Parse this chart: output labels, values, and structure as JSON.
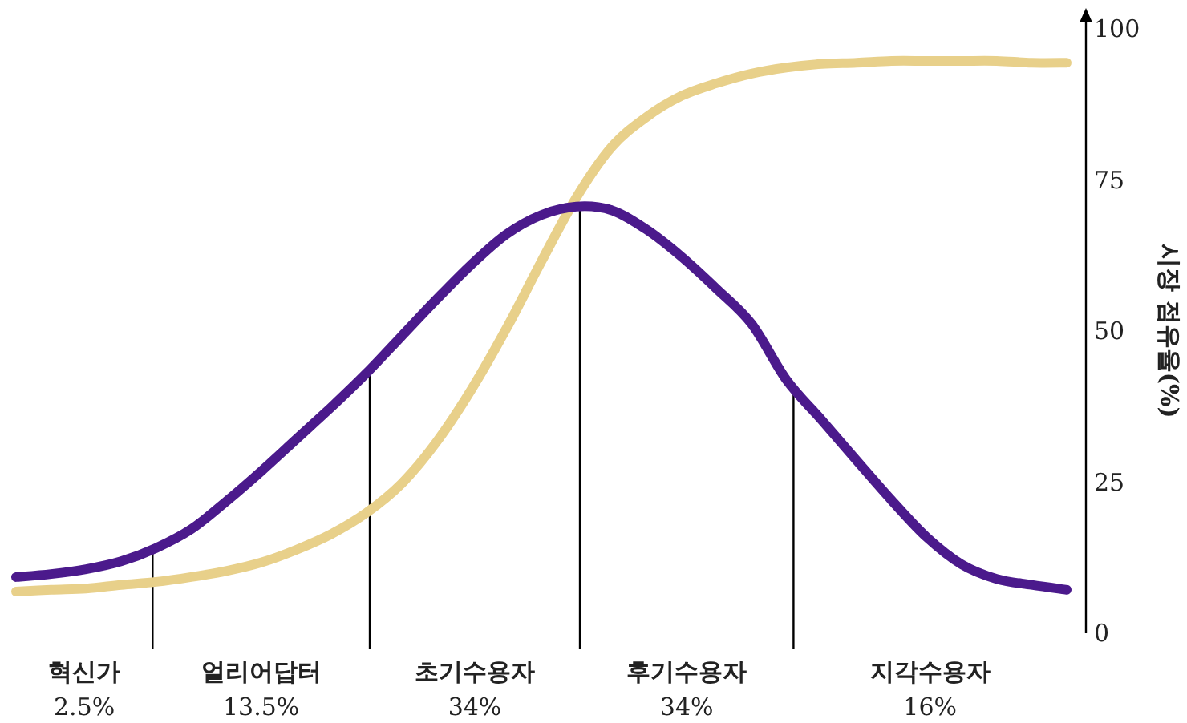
{
  "chart_data": {
    "type": "line",
    "ylabel": "시장 점유율(%)",
    "ylim": [
      0,
      100
    ],
    "yticks": [
      0,
      25,
      50,
      75,
      100
    ],
    "tick_labels": "y",
    "marker": "none",
    "line_style": "solid",
    "categories": [
      null,
      null,
      null,
      null,
      null,
      null,
      null,
      null,
      null,
      null,
      null,
      null,
      null,
      null,
      null,
      null,
      null,
      null,
      null,
      null,
      null,
      null,
      null,
      null,
      null,
      null,
      null,
      null,
      null,
      null,
      null
    ],
    "series": [
      {
        "color": "#e8d08a",
        "values": [
          6.9,
          7.2,
          7.4,
          8.0,
          8.5,
          9.3,
          10.3,
          11.7,
          13.8,
          16.4,
          19.9,
          24.7,
          31.6,
          40.3,
          50.4,
          61.5,
          72.1,
          80.4,
          85.4,
          88.9,
          91.0,
          92.6,
          93.6,
          94.2,
          94.4,
          94.7,
          94.7,
          94.7,
          94.7,
          94.4,
          94.4
        ]
      },
      {
        "color": "#4b1a8c",
        "values": [
          9.3,
          9.8,
          10.6,
          11.9,
          14.1,
          17.2,
          21.8,
          26.8,
          32.1,
          37.4,
          43.0,
          49.1,
          55.2,
          61.0,
          66.0,
          69.2,
          70.6,
          70.0,
          66.8,
          62.3,
          57.0,
          51.2,
          41.9,
          35.3,
          28.6,
          22.0,
          15.9,
          11.4,
          9.0,
          8.0,
          7.2
        ]
      }
    ],
    "annotations": [
      "혁신가\n2.5%",
      "얼리어답터\n13.5%",
      "초기수용자\n34%",
      "후기수용자\n34%",
      "지각수용자\n16%"
    ]
  }
}
